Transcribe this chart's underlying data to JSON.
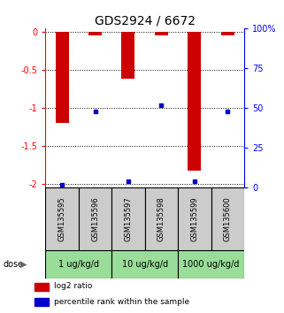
{
  "title": "GDS2924 / 6672",
  "samples": [
    "GSM135595",
    "GSM135596",
    "GSM135597",
    "GSM135598",
    "GSM135599",
    "GSM135600"
  ],
  "log2_ratios": [
    -1.2,
    -0.05,
    -0.62,
    -0.05,
    -1.82,
    -0.05
  ],
  "percentile_ranks": [
    2,
    48,
    4,
    52,
    4,
    48
  ],
  "doses": [
    "1 ug/kg/d",
    "10 ug/kg/d",
    "1000 ug/kg/d"
  ],
  "ylim_left": [
    -2.05,
    0.05
  ],
  "ylim_right": [
    -2.05,
    0.05
  ],
  "yticks_left": [
    0,
    -0.5,
    -1.0,
    -1.5,
    -2.0
  ],
  "yticks_right": [
    0,
    25,
    50,
    75,
    100
  ],
  "bar_color": "#cc0000",
  "dot_color": "#0000cc",
  "bg_plot": "#ffffff",
  "bg_samples": "#cccccc",
  "bg_dose": "#99dd99",
  "title_fontsize": 10,
  "tick_fontsize": 7,
  "bar_width": 0.4
}
